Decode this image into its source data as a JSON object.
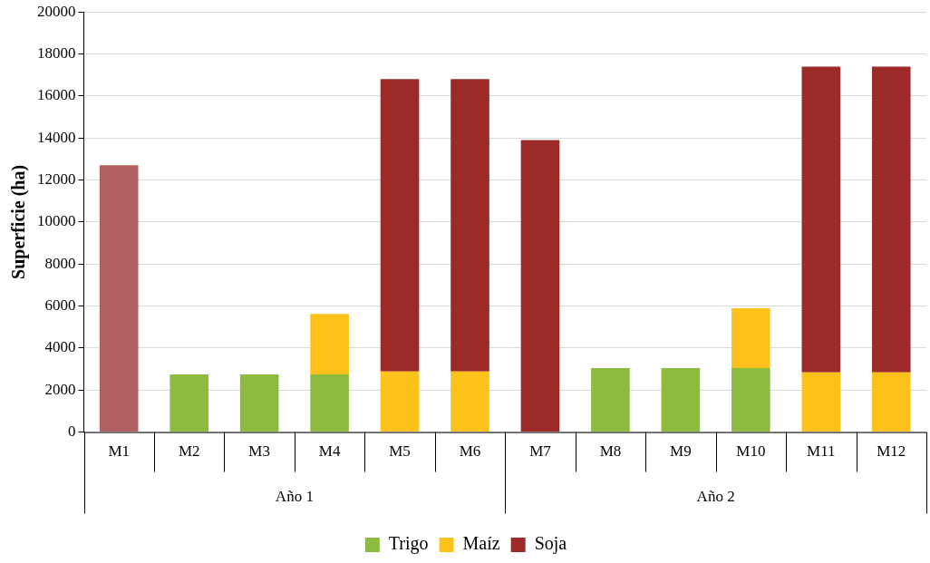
{
  "chart_data": {
    "type": "bar",
    "stacked": true,
    "ylabel": "Superficie (ha)",
    "categories": [
      "M1",
      "M2",
      "M3",
      "M4",
      "M5",
      "M6",
      "M7",
      "M8",
      "M9",
      "M10",
      "M11",
      "M12"
    ],
    "series": [
      {
        "name": "Trigo",
        "color": "#8cbb3f",
        "values": [
          null,
          2750,
          2750,
          2750,
          null,
          null,
          null,
          3050,
          3050,
          3050,
          null,
          null
        ]
      },
      {
        "name": "Maíz",
        "color": "#fcc219",
        "values": [
          null,
          null,
          null,
          2880,
          2880,
          2880,
          null,
          null,
          null,
          2850,
          2840,
          2840
        ]
      },
      {
        "name": "Soja",
        "color": "#9c2a28",
        "colors": [
          "#b06060",
          "#9c2a28",
          "#9c2a28",
          "#9c2a28",
          "#9c2a28",
          "#9c2a28",
          "#9c2a28",
          "#9c2a28",
          "#9c2a28",
          "#9c2a28",
          "#9c2a28",
          "#9c2a28"
        ],
        "values": [
          12700,
          null,
          null,
          null,
          13920,
          13920,
          13900,
          null,
          null,
          null,
          14560,
          14560
        ]
      }
    ],
    "ylim": [
      0,
      20000
    ],
    "yticks": [
      0,
      2000,
      4000,
      6000,
      8000,
      10000,
      12000,
      14000,
      16000,
      18000,
      20000
    ],
    "grid": "y",
    "legend": "bottom",
    "annotations": [
      "Año 1",
      "Año 2"
    ]
  }
}
